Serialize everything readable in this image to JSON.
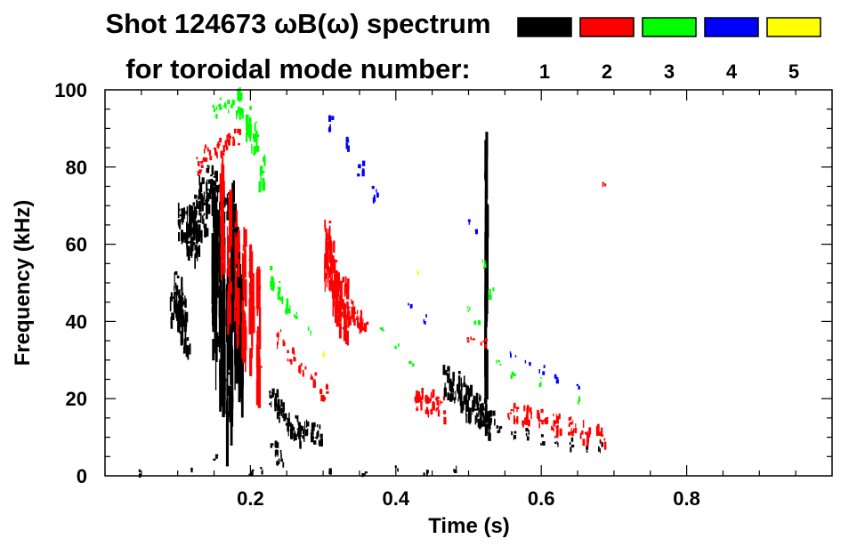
{
  "chart_data": {
    "type": "scatter",
    "title_line1": "Shot 124673 ωB(ω) spectrum",
    "title_line2": "for toroidal mode number:",
    "xlabel": "Time (s)",
    "ylabel": "Frequency (kHz)",
    "xlim": [
      0,
      1.0
    ],
    "ylim": [
      0,
      100
    ],
    "xticks": [
      0.2,
      0.4,
      0.6,
      0.8
    ],
    "xtick_labels": [
      "0.2",
      "0.4",
      "0.6",
      "0.8"
    ],
    "yticks": [
      0,
      20,
      40,
      60,
      80,
      100
    ],
    "ytick_labels": [
      "0",
      "20",
      "40",
      "60",
      "80",
      "100"
    ],
    "legend": [
      {
        "label": "1",
        "color": "#000000"
      },
      {
        "label": "2",
        "color": "#ff0000"
      },
      {
        "label": "3",
        "color": "#00ff00"
      },
      {
        "label": "4",
        "color": "#0000ff"
      },
      {
        "label": "5",
        "color": "#ffff00"
      }
    ],
    "series": [
      {
        "name": "n=1",
        "color": "#000000",
        "segments": [
          {
            "t": [
              0.095,
              0.1,
              0.105,
              0.11
            ],
            "f": [
              45,
              48,
              42,
              38
            ],
            "w": 0.012,
            "h": 10
          },
          {
            "t": [
              0.11,
              0.12,
              0.13
            ],
            "f": [
              66,
              62,
              68
            ],
            "w": 0.02,
            "h": 10
          },
          {
            "t": [
              0.135,
              0.145,
              0.155,
              0.165
            ],
            "f": [
              74,
              77,
              73,
              70
            ],
            "w": 0.015,
            "h": 8
          },
          {
            "t": [
              0.15,
              0.16,
              0.17
            ],
            "f": [
              55,
              45,
              35
            ],
            "w": 0.008,
            "h": 40
          },
          {
            "t": [
              0.175,
              0.18,
              0.185
            ],
            "f": [
              60,
              50,
              40
            ],
            "w": 0.006,
            "h": 35
          },
          {
            "t": [
              0.23,
              0.24,
              0.25,
              0.26,
              0.27,
              0.28,
              0.29
            ],
            "f": [
              20,
              18,
              15,
              13,
              12,
              12,
              11
            ],
            "w": 0.012,
            "h": 6
          },
          {
            "t": [
              0.23,
              0.24
            ],
            "f": [
              8,
              5
            ],
            "w": 0.01,
            "h": 4
          },
          {
            "t": [
              0.47,
              0.48,
              0.49,
              0.5,
              0.51,
              0.52
            ],
            "f": [
              25,
              24,
              22,
              20,
              18,
              17
            ],
            "w": 0.012,
            "h": 8
          },
          {
            "t": [
              0.52,
              0.53
            ],
            "f": [
              16,
              14
            ],
            "w": 0.01,
            "h": 6
          },
          {
            "t": [
              0.54,
              0.56,
              0.58,
              0.6,
              0.62,
              0.64,
              0.66,
              0.68
            ],
            "f": [
              13,
              12,
              11,
              10,
              9,
              9,
              8,
              8
            ],
            "w": 0.006,
            "h": 3
          },
          {
            "t": [
              0.523
            ],
            "f": [
              60
            ],
            "w": 0.003,
            "h": 60
          },
          {
            "t": [
              0.045,
              0.12,
              0.15,
              0.2,
              0.215,
              0.31,
              0.355,
              0.4,
              0.44,
              0.48
            ],
            "f": [
              1,
              2,
              5,
              1,
              2,
              2,
              1,
              2,
              1,
              2
            ],
            "w": 0.005,
            "h": 1.5
          }
        ]
      },
      {
        "name": "n=2",
        "color": "#ff0000",
        "segments": [
          {
            "t": [
              0.13,
              0.14,
              0.15,
              0.16,
              0.17,
              0.18
            ],
            "f": [
              81,
              84,
              85,
              86,
              87,
              88
            ],
            "w": 0.01,
            "h": 4
          },
          {
            "t": [
              0.16,
              0.17,
              0.18,
              0.19,
              0.2,
              0.21
            ],
            "f": [
              70,
              60,
              55,
              50,
              45,
              40
            ],
            "w": 0.005,
            "h": 30
          },
          {
            "t": [
              0.24,
              0.255,
              0.27,
              0.285,
              0.3
            ],
            "f": [
              36,
              32,
              28,
              25,
              22
            ],
            "w": 0.01,
            "h": 4
          },
          {
            "t": [
              0.305,
              0.31,
              0.315,
              0.32,
              0.33
            ],
            "f": [
              60,
              55,
              50,
              47,
              45
            ],
            "w": 0.008,
            "h": 15
          },
          {
            "t": [
              0.32,
              0.335,
              0.345,
              0.355
            ],
            "f": [
              44,
              43,
              42,
              40
            ],
            "w": 0.012,
            "h": 6
          },
          {
            "t": [
              0.43,
              0.445,
              0.46
            ],
            "f": [
              20,
              20,
              18
            ],
            "w": 0.012,
            "h": 6
          },
          {
            "t": [
              0.5,
              0.52
            ],
            "f": [
              36,
              35
            ],
            "w": 0.01,
            "h": 2
          },
          {
            "t": [
              0.56,
              0.58,
              0.6,
              0.62,
              0.64,
              0.66,
              0.68
            ],
            "f": [
              17,
              16,
              15,
              14,
              13,
              12,
              11
            ],
            "w": 0.014,
            "h": 5
          },
          {
            "t": [
              0.685
            ],
            "f": [
              76
            ],
            "w": 0.003,
            "h": 1
          }
        ]
      },
      {
        "name": "n=3",
        "color": "#00ff00",
        "segments": [
          {
            "t": [
              0.15,
              0.16,
              0.17,
              0.18
            ],
            "f": [
              95,
              97,
              96,
              95
            ],
            "w": 0.01,
            "h": 3
          },
          {
            "t": [
              0.185,
              0.195,
              0.205,
              0.215
            ],
            "f": [
              98,
              92,
              88,
              80
            ],
            "w": 0.008,
            "h": 8
          },
          {
            "t": [
              0.23,
              0.24,
              0.25
            ],
            "f": [
              52,
              48,
              44
            ],
            "w": 0.008,
            "h": 5
          },
          {
            "t": [
              0.26,
              0.28
            ],
            "f": [
              42,
              38
            ],
            "w": 0.006,
            "h": 2
          },
          {
            "t": [
              0.38,
              0.4,
              0.42
            ],
            "f": [
              38,
              34,
              30
            ],
            "w": 0.006,
            "h": 2
          },
          {
            "t": [
              0.52,
              0.53
            ],
            "f": [
              55,
              48
            ],
            "w": 0.006,
            "h": 3
          },
          {
            "t": [
              0.5,
              0.51,
              0.54,
              0.56,
              0.6,
              0.65
            ],
            "f": [
              44,
              40,
              30,
              27,
              25,
              20
            ],
            "w": 0.006,
            "h": 2
          }
        ]
      },
      {
        "name": "n=4",
        "color": "#0000ff",
        "segments": [
          {
            "t": [
              0.31,
              0.33,
              0.35,
              0.37
            ],
            "f": [
              92,
              86,
              80,
              74
            ],
            "w": 0.008,
            "h": 4
          },
          {
            "t": [
              0.42,
              0.44
            ],
            "f": [
              44,
              41
            ],
            "w": 0.008,
            "h": 2
          },
          {
            "t": [
              0.5,
              0.51
            ],
            "f": [
              66,
              64
            ],
            "w": 0.004,
            "h": 1
          },
          {
            "t": [
              0.56,
              0.58,
              0.6,
              0.62,
              0.65
            ],
            "f": [
              32,
              30,
              28,
              26,
              23
            ],
            "w": 0.008,
            "h": 2
          }
        ]
      },
      {
        "name": "n=5",
        "color": "#ffff00",
        "segments": [
          {
            "t": [
              0.43
            ],
            "f": [
              53
            ],
            "w": 0.004,
            "h": 1
          },
          {
            "t": [
              0.3
            ],
            "f": [
              32
            ],
            "w": 0.003,
            "h": 1
          }
        ]
      }
    ]
  }
}
